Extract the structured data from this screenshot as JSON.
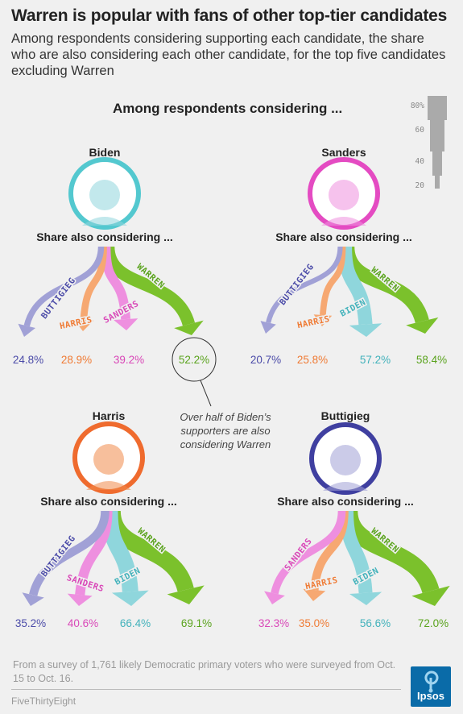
{
  "title": "Warren is popular with fans of other top-tier candidates",
  "subtitle": "Among respondents considering supporting each candidate, the share who are also considering each other candidate, for the top five candidates excluding Warren",
  "section_header": "Among respondents considering ...",
  "share_label": "Share also considering ...",
  "annotation": "Over half of Biden’s supporters are also considering Warren",
  "footnote": "From a survey of 1,761 likely Democratic primary voters who were surveyed from Oct. 15 to Oct. 16.",
  "credit": "FiveThirtyEight",
  "logo_text": "Ipsos",
  "legend": {
    "ticks": [
      "80%",
      "60",
      "40",
      "20"
    ],
    "values": [
      80,
      60,
      40,
      20
    ]
  },
  "colors": {
    "Biden": "#8fd6dc",
    "Sanders": "#ee8fdf",
    "Harris": "#f6a872",
    "Buttigieg": "#a1a1d6",
    "Warren": "#7bc12c",
    "biden_ring": "#53c8cf",
    "sanders_ring": "#e44bc2",
    "harris_ring": "#ef6b2e",
    "buttigieg_ring": "#3f3fa0"
  },
  "label_colors": {
    "Biden": "#42b2bb",
    "Sanders": "#d948b8",
    "Harris": "#ef7b35",
    "Buttigieg": "#4b4ba8",
    "Warren": "#5aa31d"
  },
  "chart_data": [
    {
      "type": "flow",
      "source": "Biden",
      "targets": [
        "Buttigieg",
        "Harris",
        "Sanders",
        "Warren"
      ],
      "values": [
        24.8,
        28.9,
        39.2,
        52.2
      ],
      "labels": [
        "24.8%",
        "28.9%",
        "39.2%",
        "52.2%"
      ],
      "branch_labels": [
        "BUTTIGIEG",
        "HARRIS",
        "SANDERS",
        "WARREN"
      ]
    },
    {
      "type": "flow",
      "source": "Sanders",
      "targets": [
        "Buttigieg",
        "Harris",
        "Biden",
        "Warren"
      ],
      "values": [
        20.7,
        25.8,
        57.2,
        58.4
      ],
      "labels": [
        "20.7%",
        "25.8%",
        "57.2%",
        "58.4%"
      ],
      "branch_labels": [
        "BUTTIGIEG",
        "HARRIS",
        "BIDEN",
        "WARREN"
      ]
    },
    {
      "type": "flow",
      "source": "Harris",
      "targets": [
        "Buttigieg",
        "Sanders",
        "Biden",
        "Warren"
      ],
      "values": [
        35.2,
        40.6,
        66.4,
        69.1
      ],
      "labels": [
        "35.2%",
        "40.6%",
        "66.4%",
        "69.1%"
      ],
      "branch_labels": [
        "BUTTIGIEG",
        "SANDERS",
        "BIDEN",
        "WARREN"
      ]
    },
    {
      "type": "flow",
      "source": "Buttigieg",
      "targets": [
        "Sanders",
        "Harris",
        "Biden",
        "Warren"
      ],
      "values": [
        32.3,
        35.0,
        56.6,
        72.0
      ],
      "labels": [
        "32.3%",
        "35.0%",
        "56.6%",
        "72.0%"
      ],
      "branch_labels": [
        "SANDERS",
        "HARRIS",
        "BIDEN",
        "WARREN"
      ]
    }
  ]
}
